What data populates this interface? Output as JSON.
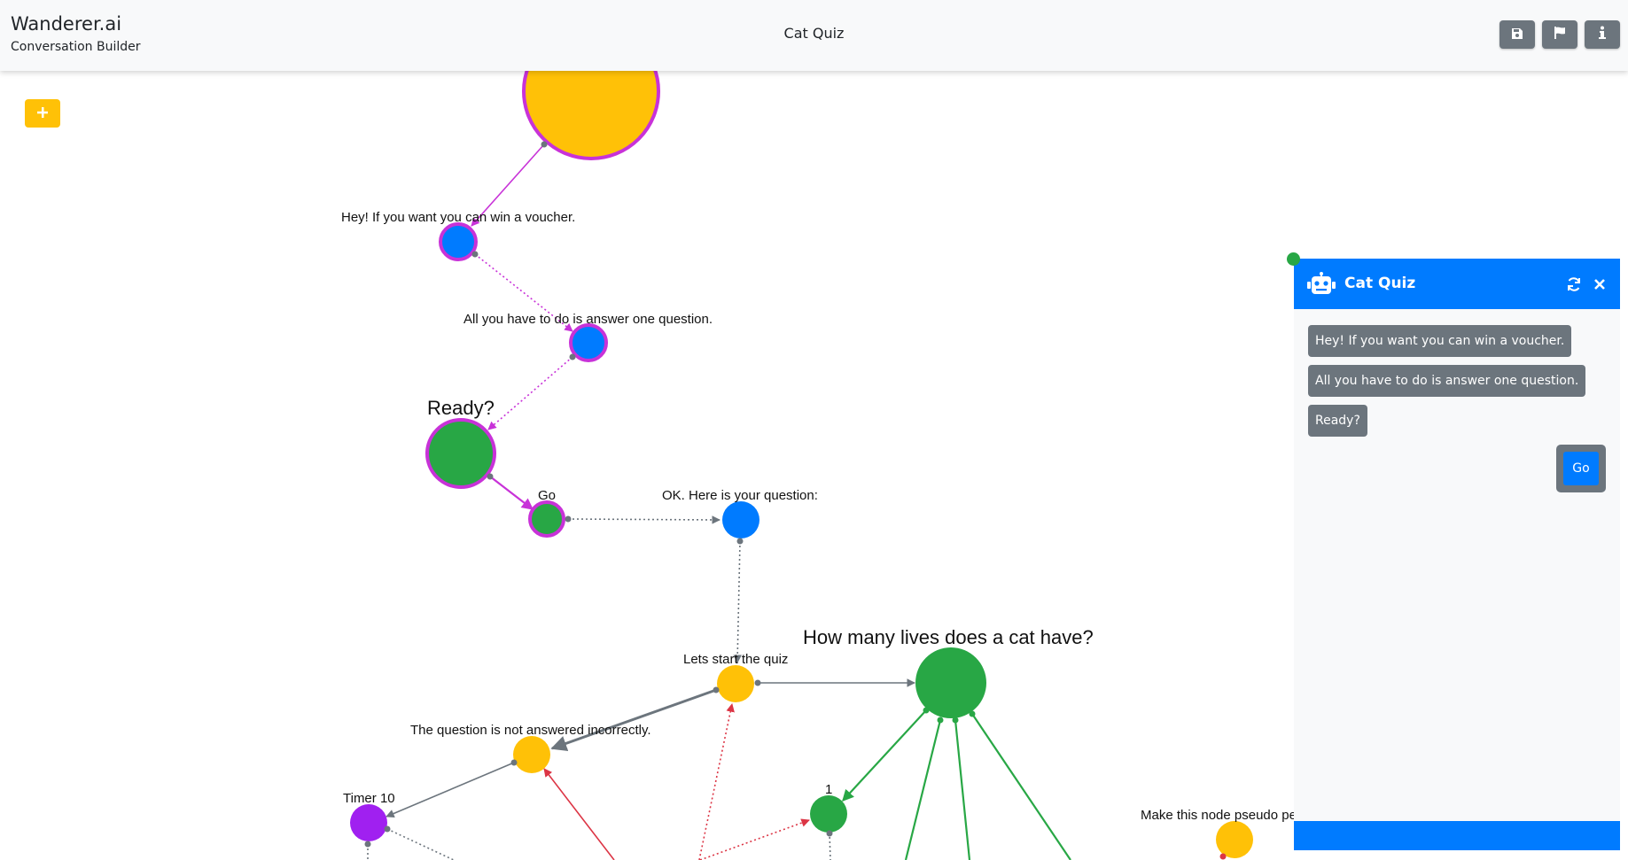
{
  "header": {
    "brand": "Wanderer.ai",
    "subtitle": "Conversation Builder",
    "title": "Cat Quiz",
    "buttons": [
      {
        "icon": "save-icon"
      },
      {
        "icon": "flag-icon"
      },
      {
        "icon": "info-icon"
      }
    ]
  },
  "toolbar": {
    "add_icon": "plus-icon"
  },
  "graph": {
    "labels": {
      "voucher": "Hey! If you want you can win a voucher.",
      "answer": "All you have to do is answer one question.",
      "ready": "Ready?",
      "go": "Go",
      "question_intro": "OK. Here is your question:",
      "lives": "How many lives does a cat have?",
      "start_quiz": "Lets start the quiz",
      "not_answered": "The question is not answered incorrectly.",
      "timer": "Timer 10",
      "one": "1",
      "pseudo": "Make this node pseudo pe"
    },
    "colors": {
      "yellow": "#ffc107",
      "blue": "#007bff",
      "green": "#28a745",
      "purple": "#a020f0",
      "magenta": "#c832d8",
      "edge_gray": "#6c757d",
      "edge_red": "#dc3545"
    }
  },
  "chat": {
    "title": "Cat Quiz",
    "icons": {
      "bot": "robot-icon",
      "refresh": "refresh-icon",
      "close": "close-icon"
    },
    "messages": [
      "Hey! If you want you can win a voucher.",
      "All you have to do is answer one question.",
      "Ready?"
    ],
    "reply": "Go"
  }
}
